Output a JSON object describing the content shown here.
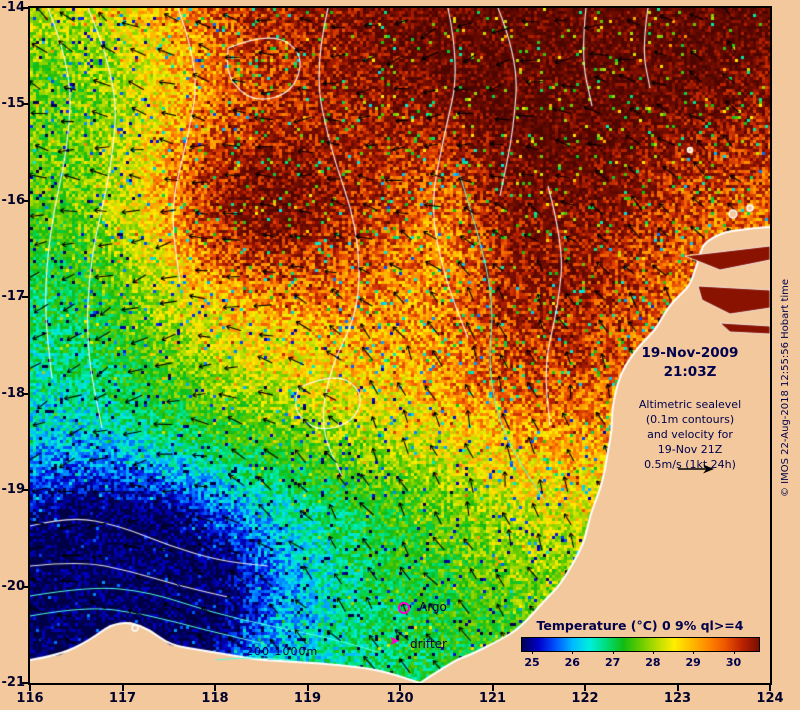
{
  "colors": {
    "background": "#f2c89c",
    "land": "#f2c89c",
    "text": "#00004d",
    "contour": "#ffffff",
    "bathymetry": "#55ffe0",
    "arrow": "#000000",
    "marker": "#ff00cc",
    "inlet_water": "#8a1200"
  },
  "timestamp": {
    "date": "19-Nov-2009",
    "time": "21:03Z"
  },
  "info": {
    "lines": [
      "Altimetric sealevel",
      "(0.1m contours)",
      "and velocity for",
      "19-Nov 21Z",
      "0.5m/s (1kt 24h)"
    ]
  },
  "legend": {
    "argo": "Argo",
    "drifter": "drifter",
    "depth": "200  1000m"
  },
  "credit": "© IMOS 22-Aug-2018 12:55:56 Hobart time",
  "axes": {
    "x_label_values": [
      "116",
      "117",
      "118",
      "119",
      "120",
      "121",
      "122",
      "123",
      "124"
    ],
    "y_label_values": [
      "-14",
      "-15",
      "-16",
      "-17",
      "-18",
      "-19",
      "-20",
      "-21"
    ]
  },
  "colorbar": {
    "title": "Temperature (°C) 0 9% ql>=4",
    "ticks": [
      "25",
      "26",
      "27",
      "28",
      "29",
      "30"
    ],
    "range": [
      24.7,
      30.6
    ],
    "gradient": [
      "#000055",
      "#0000cc",
      "#0055ff",
      "#00bbff",
      "#00eedd",
      "#00dd77",
      "#11bb11",
      "#66cc00",
      "#bbdd00",
      "#ffee00",
      "#ffbb00",
      "#ff8800",
      "#ee5500",
      "#bb2200",
      "#7a0e00"
    ]
  }
}
